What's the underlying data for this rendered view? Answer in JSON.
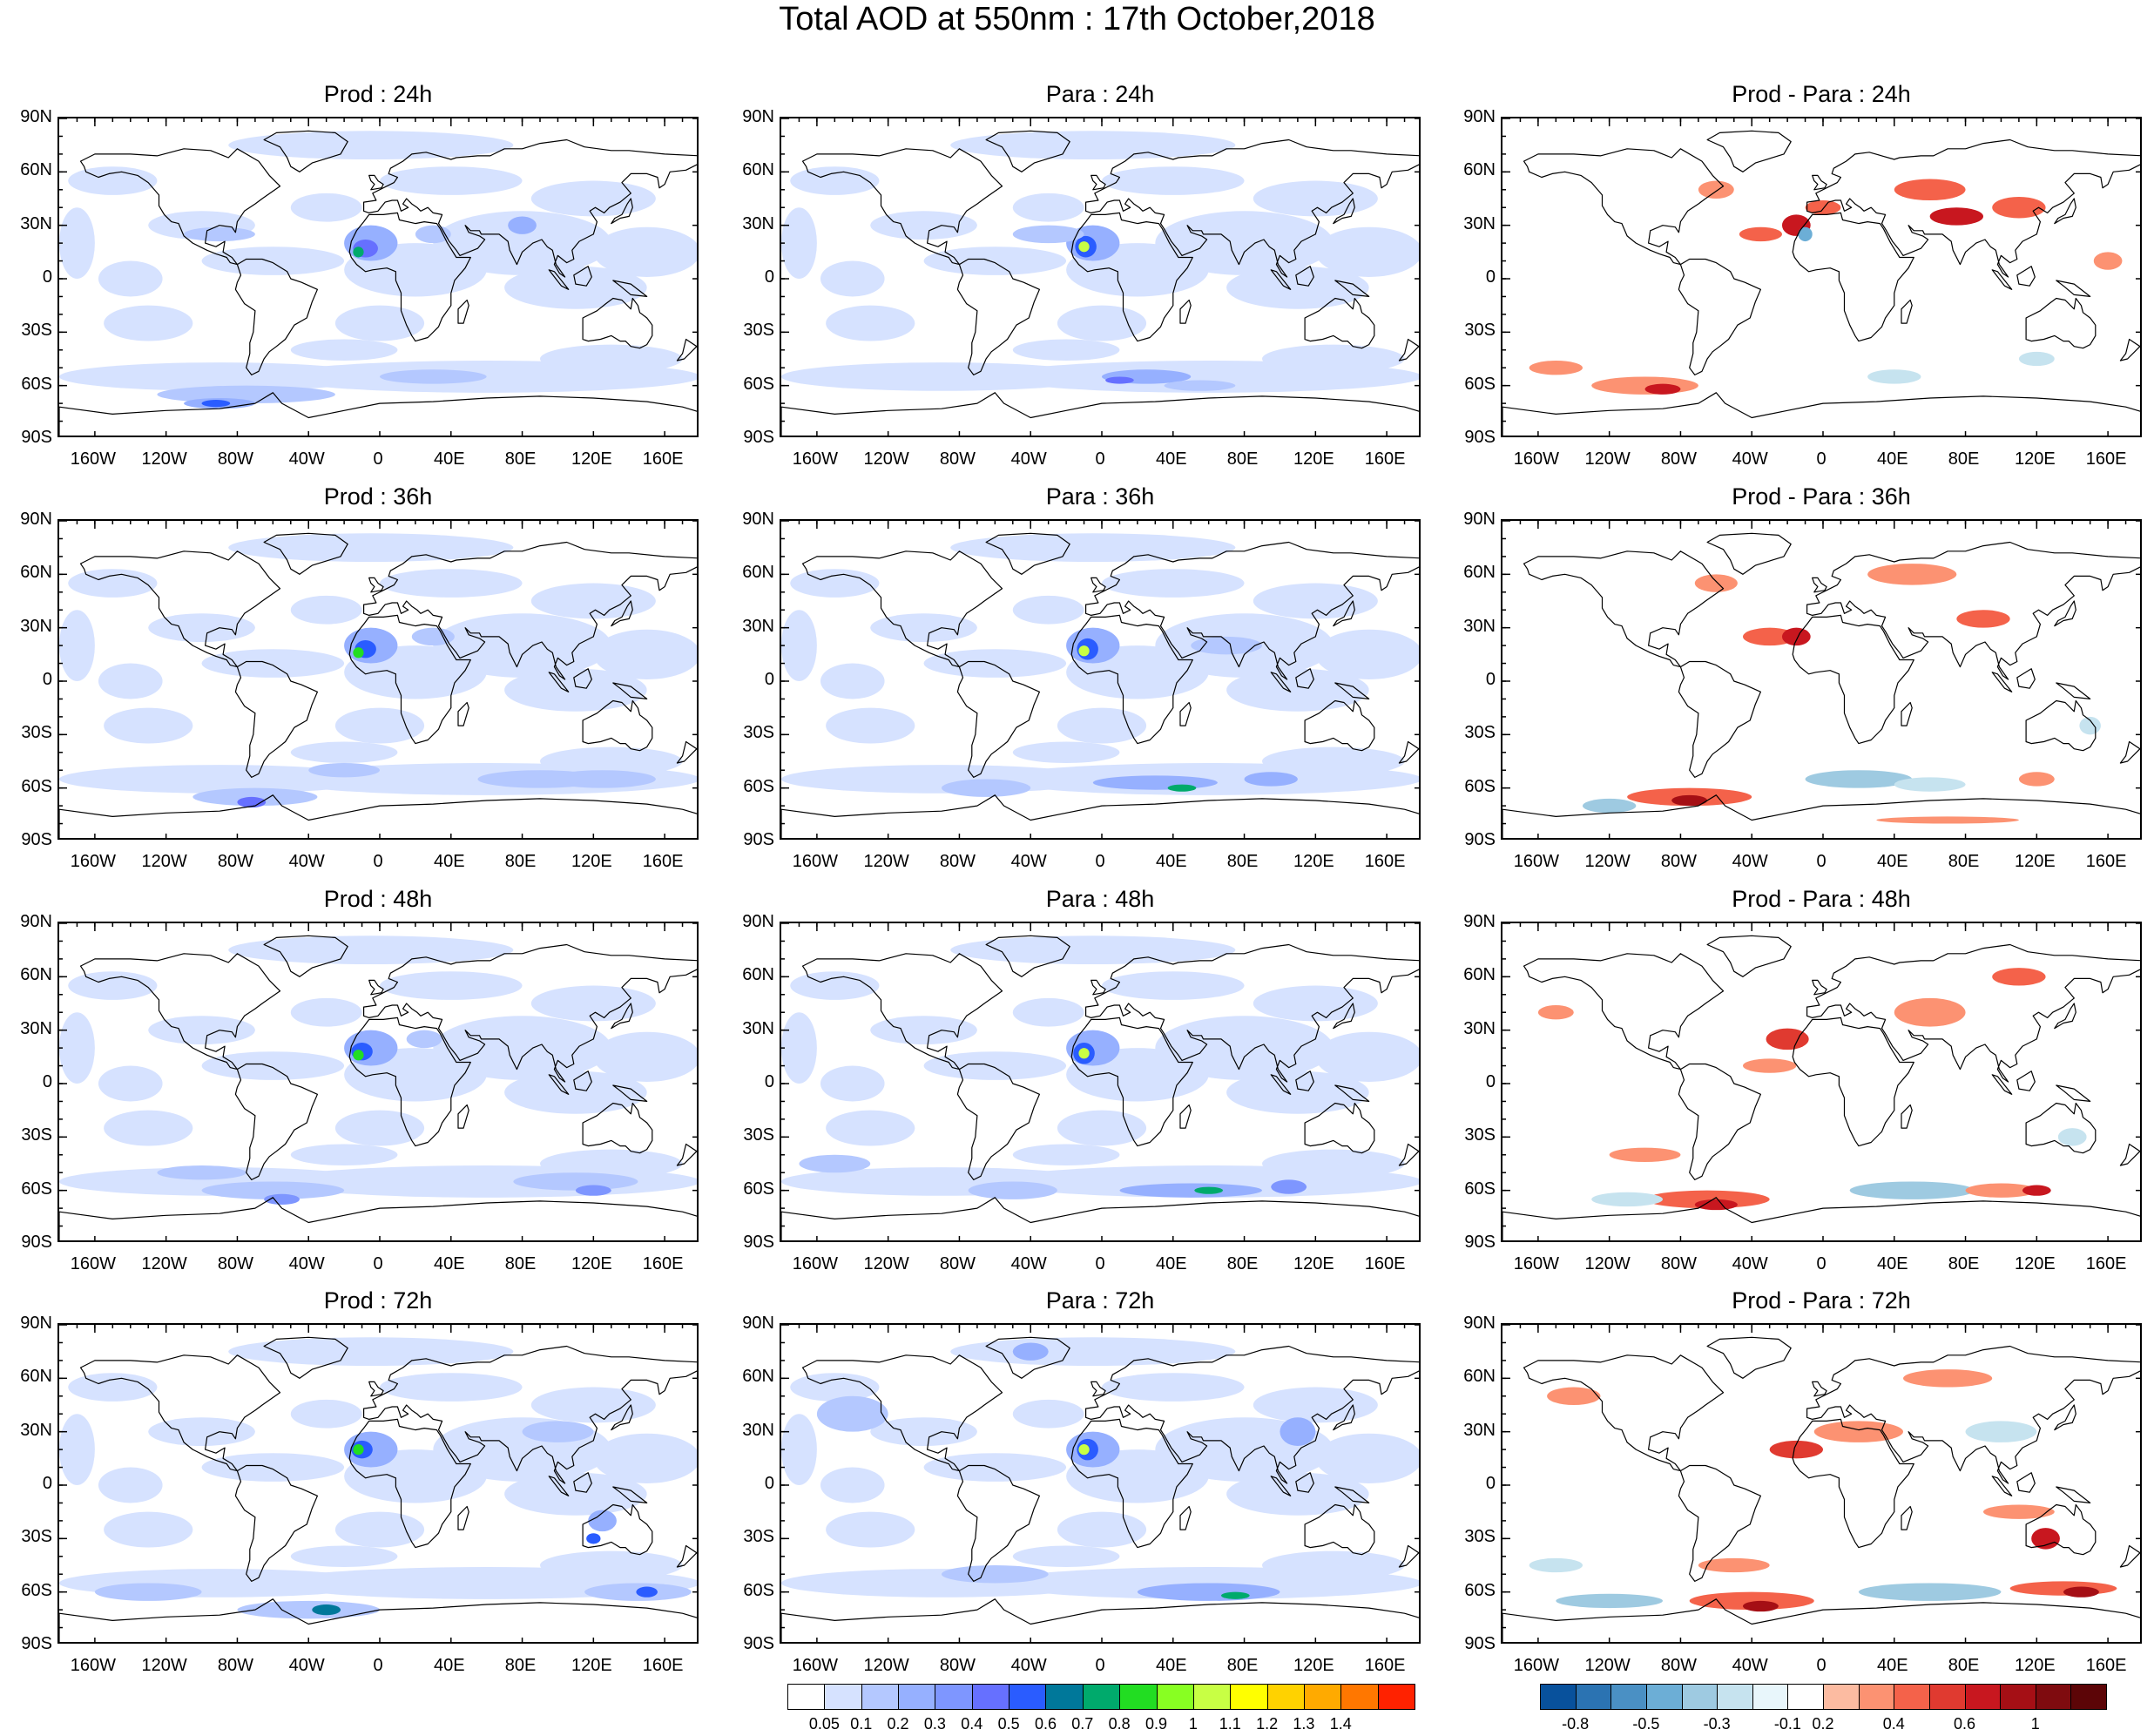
{
  "title": "Total AOD at 550nm : 17th October,2018",
  "lat_labels": [
    "90N",
    "60N",
    "30N",
    "0",
    "30S",
    "60S",
    "90S"
  ],
  "lon_labels": [
    "160W",
    "120W",
    "80W",
    "40W",
    "0",
    "40E",
    "80E",
    "120E",
    "160E"
  ],
  "panels": [
    {
      "row": 0,
      "col": 0,
      "title": "Prod : 24h",
      "type": "aod"
    },
    {
      "row": 0,
      "col": 1,
      "title": "Para : 24h",
      "type": "aod"
    },
    {
      "row": 0,
      "col": 2,
      "title": "Prod - Para : 24h",
      "type": "diff"
    },
    {
      "row": 1,
      "col": 0,
      "title": "Prod : 36h",
      "type": "aod"
    },
    {
      "row": 1,
      "col": 1,
      "title": "Para : 36h",
      "type": "aod"
    },
    {
      "row": 1,
      "col": 2,
      "title": "Prod - Para : 36h",
      "type": "diff"
    },
    {
      "row": 2,
      "col": 0,
      "title": "Prod : 48h",
      "type": "aod"
    },
    {
      "row": 2,
      "col": 1,
      "title": "Para : 48h",
      "type": "aod"
    },
    {
      "row": 2,
      "col": 2,
      "title": "Prod - Para : 48h",
      "type": "diff"
    },
    {
      "row": 3,
      "col": 0,
      "title": "Prod : 72h",
      "type": "aod"
    },
    {
      "row": 3,
      "col": 1,
      "title": "Para : 72h",
      "type": "aod"
    },
    {
      "row": 3,
      "col": 2,
      "title": "Prod - Para : 72h",
      "type": "diff"
    }
  ],
  "aod_colorbar": {
    "labels": [
      "0.05",
      "0.1",
      "0.2",
      "0.3",
      "0.4",
      "0.5",
      "0.6",
      "0.7",
      "0.8",
      "0.9",
      "1",
      "1.1",
      "1.2",
      "1.3",
      "1.4"
    ],
    "colors": [
      "#ffffff",
      "#d6e2ff",
      "#b4c8ff",
      "#96b0ff",
      "#7e96ff",
      "#6670ff",
      "#2a5cff",
      "#00789a",
      "#00aa6c",
      "#22dd22",
      "#88ff22",
      "#c8ff44",
      "#ffff00",
      "#ffd200",
      "#ffaa00",
      "#ff7700",
      "#ff2200"
    ]
  },
  "diff_colorbar": {
    "labels": [
      "-0.8",
      "-0.5",
      "-0.3",
      "-0.1",
      "0.2",
      "0.4",
      "0.6",
      "1"
    ],
    "colors": [
      "#08519c",
      "#2b73b2",
      "#4a90c4",
      "#6caed6",
      "#9ecae1",
      "#c6e3ef",
      "#e8f6fb",
      "#ffffff",
      "#fcbba1",
      "#fc9272",
      "#f4624a",
      "#e03a30",
      "#c8171f",
      "#a50f15",
      "#7f0b0f",
      "#5c0507"
    ],
    "tick_indices": [
      1,
      3,
      5,
      7,
      8,
      10,
      12,
      14
    ]
  }
}
